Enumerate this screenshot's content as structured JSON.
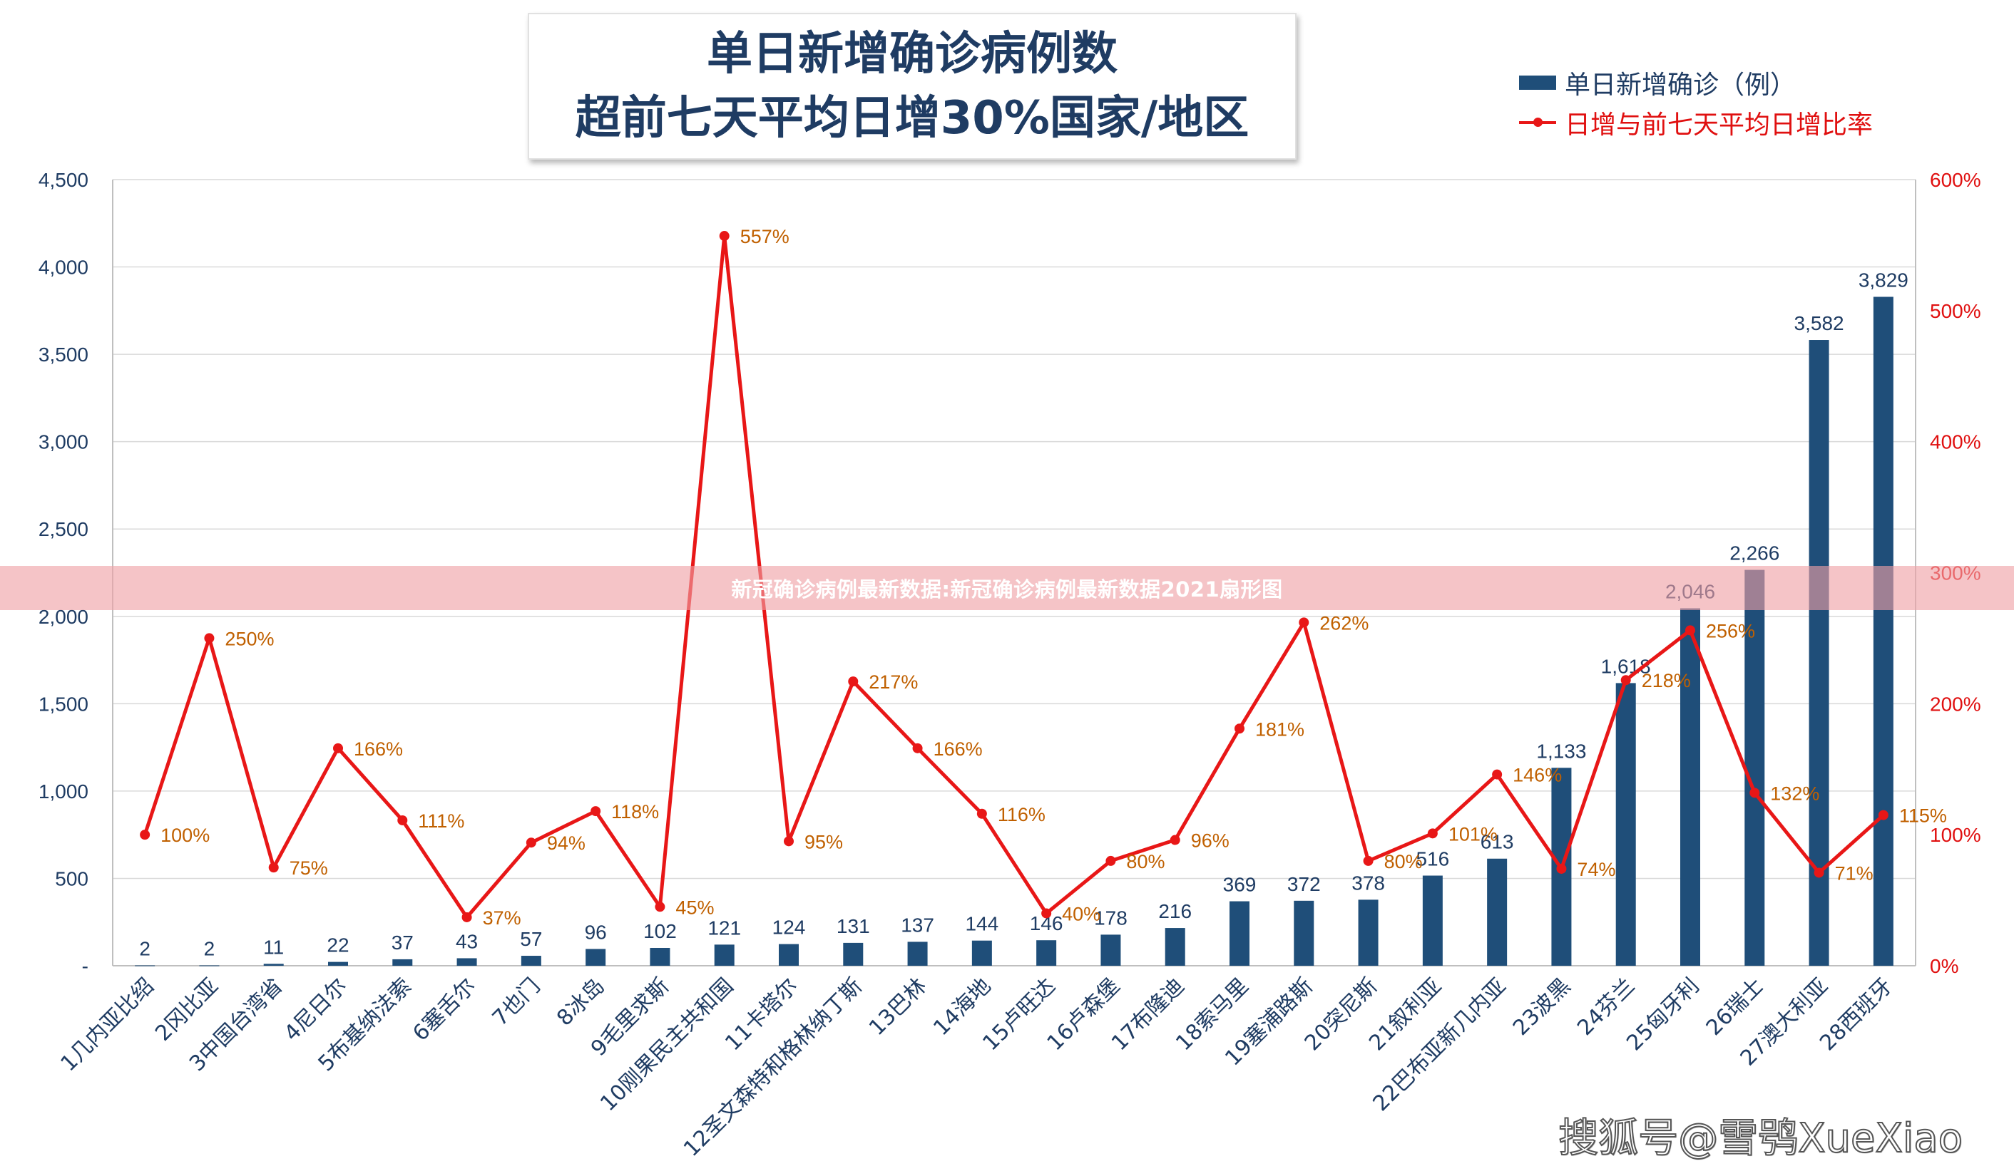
{
  "chart_data": {
    "type": "bar",
    "title": "单日新增确诊病例数",
    "subtitle": "超前七天平均日增30%国家/地区",
    "categories": [
      "1几内亚比绍",
      "2冈比亚",
      "3中国台湾省",
      "4尼日尔",
      "5布基纳法索",
      "6塞舌尔",
      "7也门",
      "8冰岛",
      "9毛里求斯",
      "10刚果民主共和国",
      "11卡塔尔",
      "12圣文森特和格林纳丁斯",
      "13巴林",
      "14海地",
      "15卢旺达",
      "16卢森堡",
      "17布隆迪",
      "18索马里",
      "19塞浦路斯",
      "20突尼斯",
      "21叙利亚",
      "22巴布亚新几内亚",
      "23波黑",
      "24芬兰",
      "25匈牙利",
      "26瑞士",
      "27澳大利亚",
      "28西班牙"
    ],
    "series": [
      {
        "name": "单日新增确诊（例）",
        "type": "bar",
        "axis": "left",
        "color": "#1f4e79",
        "values": [
          2,
          2,
          11,
          22,
          37,
          43,
          57,
          96,
          102,
          121,
          124,
          131,
          137,
          144,
          146,
          178,
          216,
          369,
          372,
          378,
          516,
          613,
          1133,
          1618,
          2046,
          2266,
          3582,
          3829
        ],
        "labels": [
          "2",
          "2",
          "11",
          "22",
          "37",
          "43",
          "57",
          "96",
          "102",
          "121",
          "124",
          "131",
          "137",
          "144",
          "146",
          "178",
          "216",
          "369",
          "372",
          "378",
          "516",
          "613",
          "1,133",
          "1,618",
          "2,046",
          "2,266",
          "3,582",
          "3,829"
        ]
      },
      {
        "name": "日增与前七天平均日增比率",
        "type": "line",
        "axis": "right",
        "color": "#e81717",
        "values": [
          100,
          250,
          75,
          166,
          111,
          37,
          94,
          118,
          45,
          557,
          95,
          217,
          166,
          116,
          40,
          80,
          96,
          181,
          262,
          80,
          101,
          146,
          74,
          218,
          256,
          132,
          71,
          115
        ],
        "labels": [
          "100%",
          "250%",
          "75%",
          "166%",
          "111%",
          "37%",
          "94%",
          "118%",
          "45%",
          "557%",
          "95%",
          "217%",
          "166%",
          "116%",
          "40%",
          "80%",
          "96%",
          "181%",
          "262%",
          "80%",
          "101%",
          "146%",
          "74%",
          "218%",
          "256%",
          "132%",
          "71%",
          "115%"
        ]
      }
    ],
    "y_left": {
      "min": 0,
      "max": 4500,
      "tick_labels": [
        "-",
        "500",
        "1,000",
        "1,500",
        "2,000",
        "2,500",
        "3,000",
        "3,500",
        "4,000",
        "4,500"
      ]
    },
    "y_right": {
      "min": 0,
      "max": 600,
      "tick_labels": [
        "0%",
        "100%",
        "200%",
        "300%",
        "400%",
        "500%",
        "600%"
      ]
    },
    "xlabel": "",
    "ylabel": "",
    "grid": true,
    "legend": "top-right"
  },
  "colors": {
    "bar": "#1f4e79",
    "line": "#e81717",
    "title": "#1f3c63",
    "left_axis_text": "#1f3c63",
    "right_axis_text": "#e01010",
    "point_label": "#c06000",
    "bar_label": "#1f3c63",
    "grid": "#d9d9d9"
  },
  "banner_text": "新冠确诊病例最新数据:新冠确诊病例最新数据2021扇形图",
  "watermark_text": "搜狐号@雪鸮XueXiao"
}
